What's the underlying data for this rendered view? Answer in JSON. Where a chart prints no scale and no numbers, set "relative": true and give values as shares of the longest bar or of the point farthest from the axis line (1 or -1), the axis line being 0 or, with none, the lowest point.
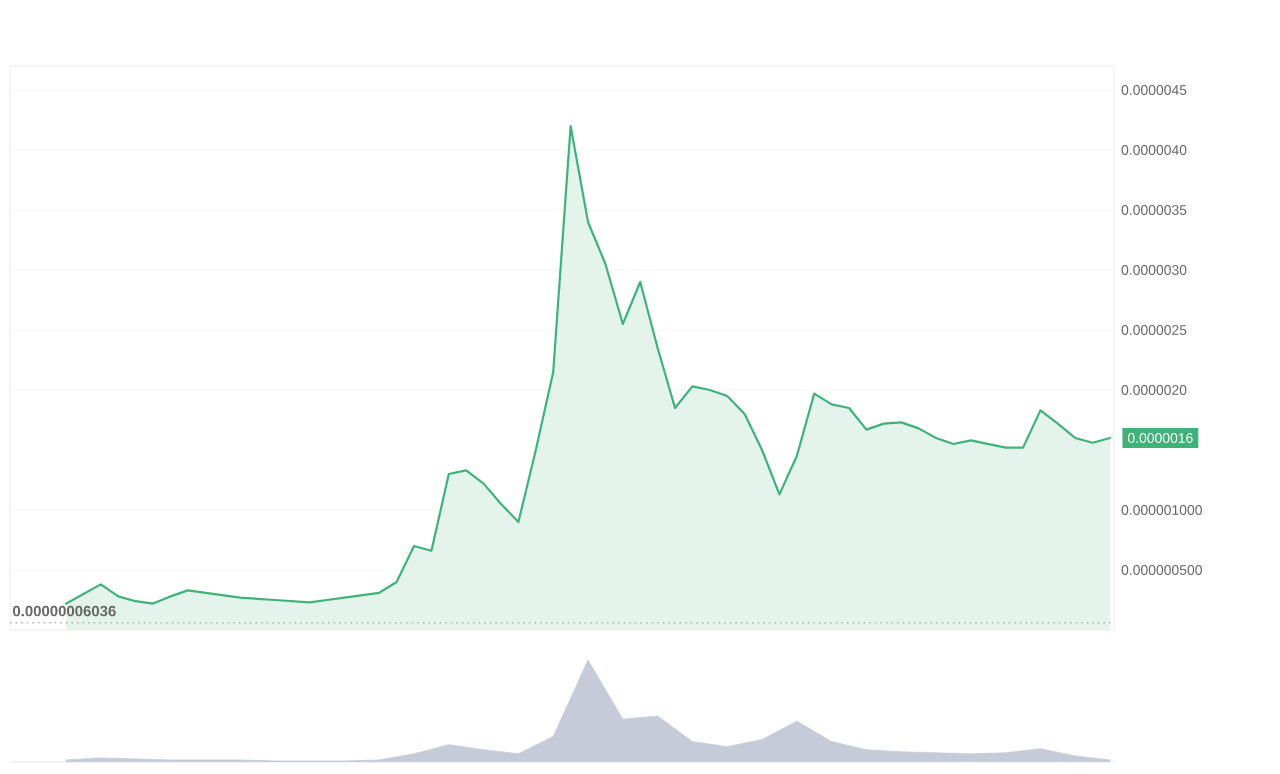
{
  "chart_data": [
    {
      "type": "area",
      "color": "#3fb27a",
      "categories": [
        null,
        null,
        null,
        null,
        null,
        null,
        null,
        null,
        null,
        null,
        null,
        null,
        null,
        null,
        null,
        null,
        null,
        null,
        null,
        null,
        null,
        null,
        null,
        null,
        null,
        null,
        null,
        null,
        null,
        null,
        null,
        null,
        null,
        null,
        null,
        null,
        null,
        null,
        null,
        null,
        null,
        null,
        null,
        null,
        null,
        null,
        null,
        null,
        null,
        null,
        null,
        null,
        null,
        null,
        null,
        null,
        null,
        null,
        null,
        null,
        null
      ],
      "values": [
        2.2e-07,
        3e-07,
        3.8e-07,
        2.8e-07,
        2.4e-07,
        2.2e-07,
        2.8e-07,
        3.3e-07,
        3.1e-07,
        2.9e-07,
        2.7e-07,
        2.6e-07,
        2.5e-07,
        2.4e-07,
        2.3e-07,
        2.5e-07,
        2.7e-07,
        2.9e-07,
        3.1e-07,
        4e-07,
        7e-07,
        6.6e-07,
        1.3e-06,
        1.33e-06,
        1.22e-06,
        1.05e-06,
        9e-07,
        1.5e-06,
        2.15e-06,
        4.2e-06,
        3.4e-06,
        3.05e-06,
        2.55e-06,
        2.9e-06,
        2.35e-06,
        1.85e-06,
        2.03e-06,
        2e-06,
        1.95e-06,
        1.8e-06,
        1.5e-06,
        1.13e-06,
        1.45e-06,
        1.97e-06,
        1.88e-06,
        1.85e-06,
        1.67e-06,
        1.72e-06,
        1.73e-06,
        1.68e-06,
        1.6e-06,
        1.55e-06,
        1.58e-06,
        1.55e-06,
        1.52e-06,
        1.52e-06,
        1.83e-06,
        1.72e-06,
        1.6e-06,
        1.56e-06,
        1.6e-06
      ],
      "ylim": [
        0,
        4.7e-06
      ],
      "yticks": [
        {
          "value": 5e-07,
          "label": "0.000000500"
        },
        {
          "value": 1e-06,
          "label": "0.000001000"
        },
        {
          "value": 2e-06,
          "label": "0.0000020"
        },
        {
          "value": 2.5e-06,
          "label": "0.0000025"
        },
        {
          "value": 3e-06,
          "label": "0.0000030"
        },
        {
          "value": 3.5e-06,
          "label": "0.0000035"
        },
        {
          "value": 4e-06,
          "label": "0.0000040"
        },
        {
          "value": 4.5e-06,
          "label": "0.0000045"
        }
      ],
      "grid": "y",
      "tick_labels": "y",
      "ref_lines": [
        {
          "axis": "y",
          "value": 6.036e-08,
          "label": "0.00000006036",
          "line_style": "dotted",
          "color": "#b0b4bc"
        }
      ],
      "annotations": [
        "0.0000016"
      ]
    },
    {
      "type": "area",
      "relative": true,
      "color": "#c5cbd8",
      "tick_labels": false,
      "categories": [
        null,
        null,
        null,
        null,
        null,
        null,
        null,
        null,
        null,
        null,
        null,
        null,
        null,
        null,
        null,
        null,
        null,
        null,
        null,
        null,
        null,
        null,
        null,
        null,
        null,
        null,
        null,
        null,
        null,
        null,
        null
      ],
      "values": [
        0.02,
        0.04,
        0.03,
        0.02,
        0.02,
        0.02,
        0.01,
        0.01,
        0.01,
        0.02,
        0.08,
        0.17,
        0.12,
        0.08,
        0.25,
        1,
        0.42,
        0.45,
        0.2,
        0.15,
        0.22,
        0.4,
        0.2,
        0.12,
        0.1,
        0.09,
        0.08,
        0.09,
        0.13,
        0.06,
        0.02
      ]
    }
  ]
}
